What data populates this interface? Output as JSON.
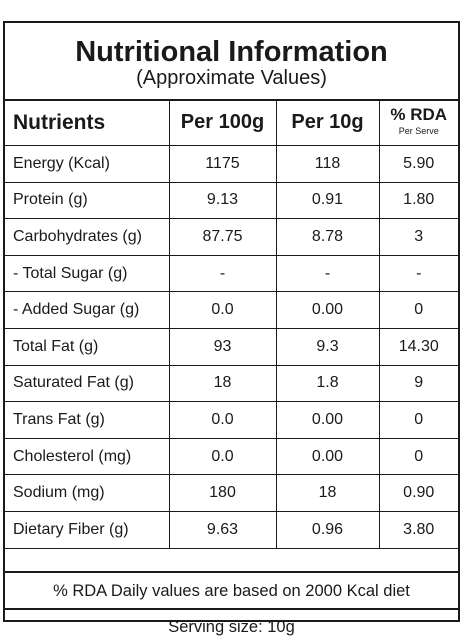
{
  "title": "Nutritional Information",
  "subtitle": "(Approximate Values)",
  "columns": {
    "nutrients": "Nutrients",
    "per100": "Per 100g",
    "per10": "Per 10g",
    "rda": "% RDA",
    "rda_sub": "Per Serve"
  },
  "rows": [
    {
      "name": "Energy (Kcal)",
      "per100": "1175",
      "per10": "118",
      "rda": "5.90"
    },
    {
      "name": "Protein (g)",
      "per100": "9.13",
      "per10": "0.91",
      "rda": "1.80"
    },
    {
      "name": "Carbohydrates (g)",
      "per100": "87.75",
      "per10": "8.78",
      "rda": "3"
    },
    {
      "name": "- Total Sugar (g)",
      "per100": "-",
      "per10": "-",
      "rda": "-"
    },
    {
      "name": "- Added Sugar (g)",
      "per100": "0.0",
      "per10": "0.00",
      "rda": "0"
    },
    {
      "name": "Total Fat (g)",
      "per100": "93",
      "per10": "9.3",
      "rda": "14.30"
    },
    {
      "name": "Saturated Fat (g)",
      "per100": "18",
      "per10": "1.8",
      "rda": "9"
    },
    {
      "name": "Trans Fat (g)",
      "per100": "0.0",
      "per10": "0.00",
      "rda": "0"
    },
    {
      "name": "Cholesterol (mg)",
      "per100": "0.0",
      "per10": "0.00",
      "rda": "0"
    },
    {
      "name": "Sodium (mg)",
      "per100": "180",
      "per10": "18",
      "rda": "0.90"
    },
    {
      "name": "Dietary Fiber (g)",
      "per100": "9.63",
      "per10": "0.96",
      "rda": "3.80"
    }
  ],
  "footnote": "% RDA Daily values are based on 2000 Kcal diet",
  "serving": "Serving size: 10g"
}
